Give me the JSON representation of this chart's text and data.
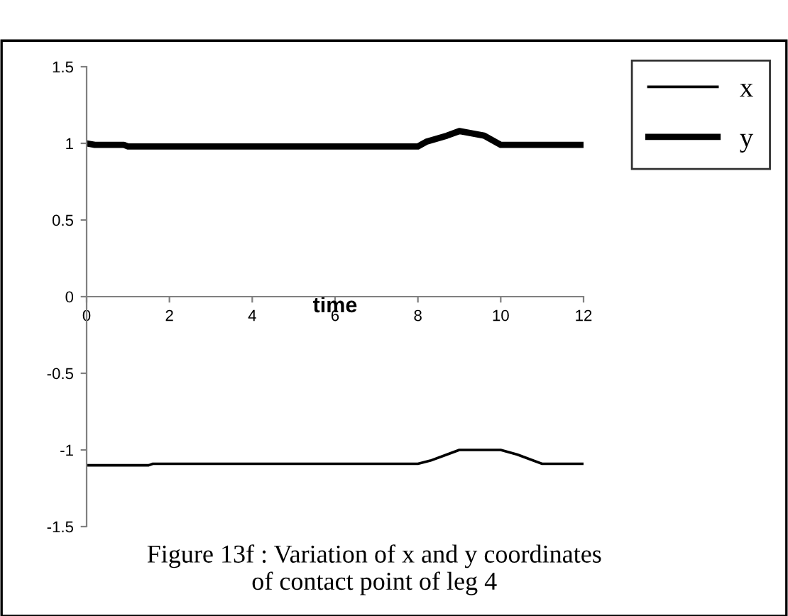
{
  "chart_data": {
    "type": "line",
    "xlabel": "time",
    "xlim": [
      0,
      12
    ],
    "xticks": [
      0,
      2,
      4,
      6,
      8,
      10,
      12
    ],
    "ylim": [
      -1.5,
      1.5
    ],
    "yticks": [
      -1.5,
      -1,
      -0.5,
      0,
      0.5,
      1,
      1.5
    ],
    "grid": false,
    "legend": "top right",
    "marker": "none",
    "line_style": "solid",
    "series": [
      {
        "name": "x",
        "color": "#000000",
        "x": [
          0,
          1.5,
          1.6,
          8,
          8.3,
          8.7,
          9,
          10,
          10.4,
          11,
          11.8,
          12
        ],
        "values": [
          -1.1,
          -1.1,
          -1.09,
          -1.09,
          -1.07,
          -1.03,
          -1.0,
          -1.0,
          -1.03,
          -1.09,
          -1.09,
          -1.09
        ]
      },
      {
        "name": "y",
        "color": "#000000",
        "x": [
          0,
          0.2,
          0.9,
          1.0,
          8,
          8.2,
          8.7,
          9,
          9.6,
          10,
          11,
          12
        ],
        "values": [
          1.0,
          0.99,
          0.99,
          0.98,
          0.98,
          1.01,
          1.05,
          1.08,
          1.05,
          0.99,
          0.99,
          0.99
        ]
      }
    ],
    "annotations": [
      "Figure 13f : Variation of x and y coordinates\nof contact point of leg 4"
    ]
  }
}
